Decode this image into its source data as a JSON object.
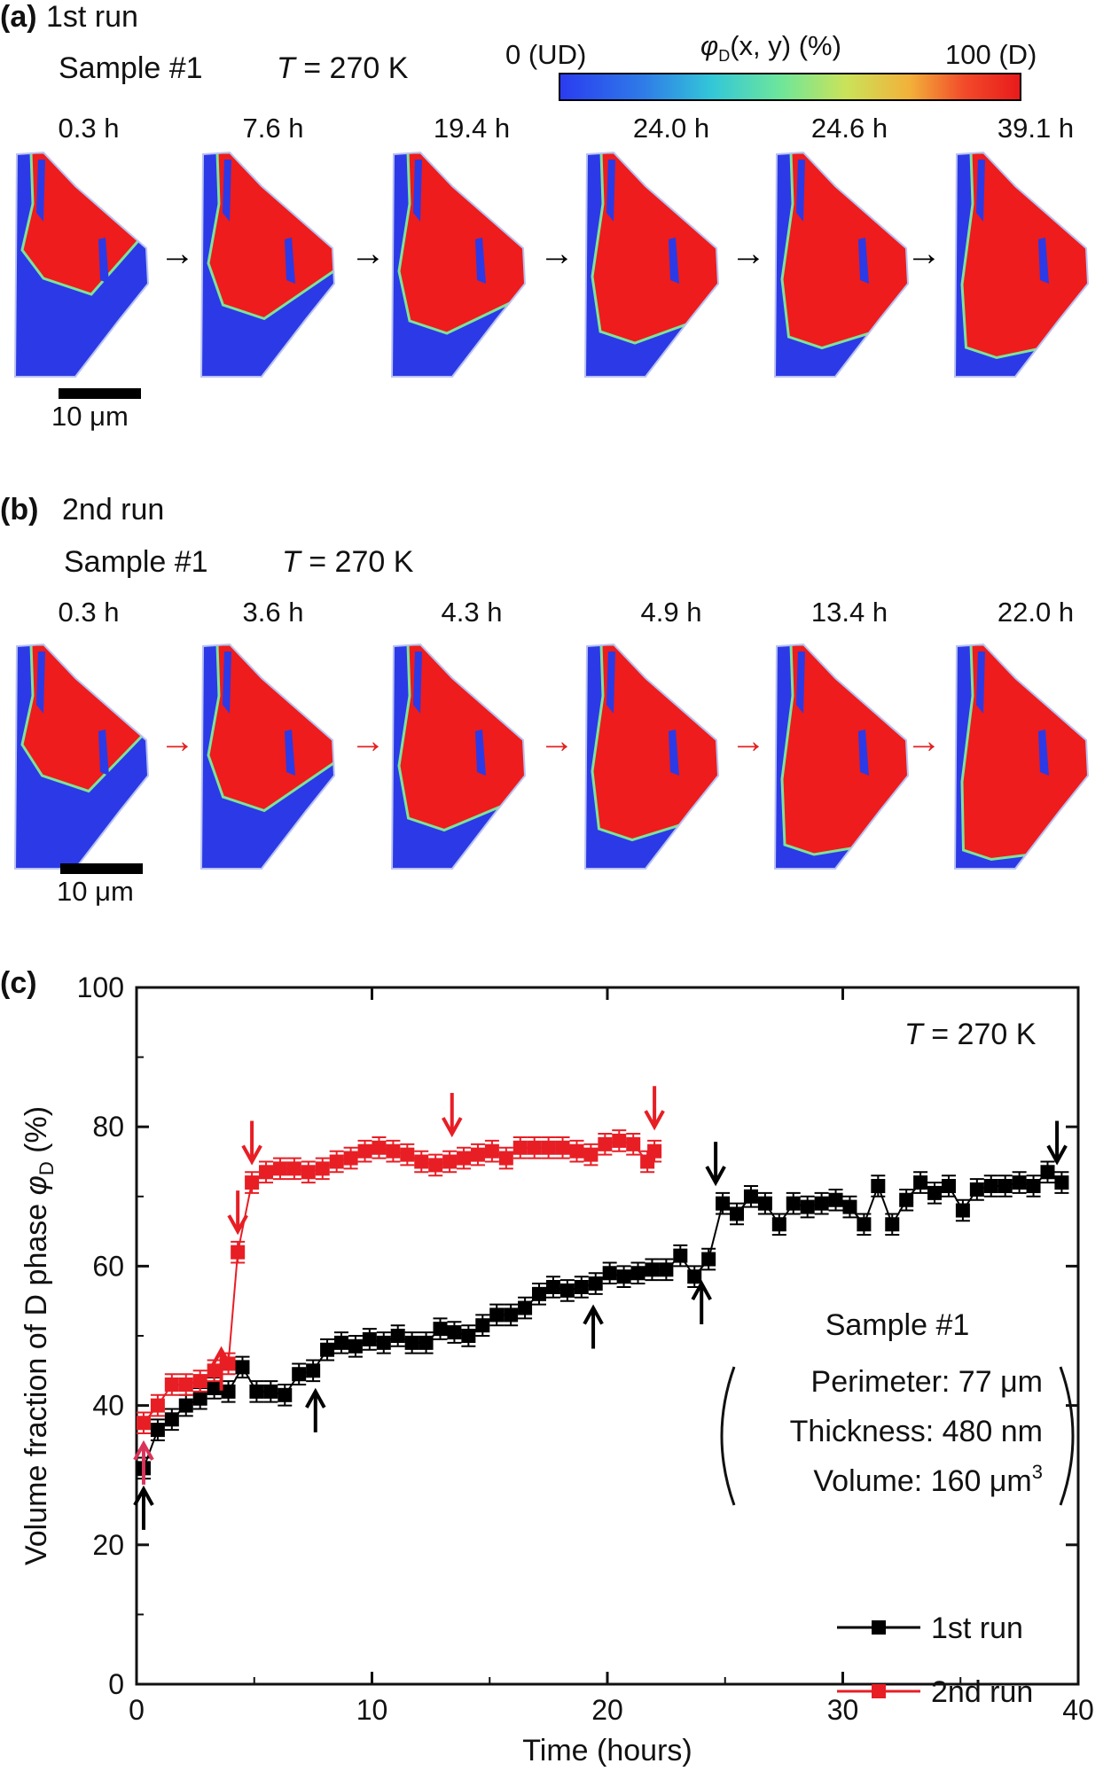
{
  "panel_a": {
    "label": "(a)",
    "title": "1st run",
    "sample": "Sample #1",
    "temp_T": "T",
    "temp_value": " = 270 K",
    "times": [
      "0.3 h",
      "7.6 h",
      "19.4 h",
      "24.0 h",
      "24.6 h",
      "39.1 h"
    ],
    "scale_label": "10 μm"
  },
  "colorbar": {
    "left_label": "0 (UD)",
    "right_label": "100 (D)",
    "title_phi": "φ",
    "title_sub": "D",
    "title_rest": "(x, y) (%)"
  },
  "panel_b": {
    "label": "(b)",
    "title": "2nd run",
    "sample": "Sample #1",
    "temp_T": "T",
    "temp_value": " = 270 K",
    "times": [
      "0.3 h",
      "3.6 h",
      "4.3 h",
      "4.9 h",
      "13.4 h",
      "22.0 h"
    ],
    "scale_label": "10 μm"
  },
  "panel_c": {
    "label": "(c)",
    "temp_T": "T",
    "temp_value": " = 270 K",
    "sample": "Sample #1",
    "perimeter": "Perimeter: 77 μm",
    "thickness": "Thickness: 480 nm",
    "volume": "Volume: 160 μm",
    "volume_sup": "3"
  },
  "colors": {
    "map_blue": "#2b3ae6",
    "map_red": "#ee1c1c",
    "map_green": "#7de39a",
    "run1": "#000000",
    "run2": "#e81e25",
    "arrow_pink": "#d9335a"
  },
  "chart_data": {
    "type": "scatter",
    "xlabel": "Time (hours)",
    "ylabel_main": "Volume fraction of D phase ",
    "ylabel_phi": "φ",
    "ylabel_sub": "D",
    "ylabel_unit": " (%)",
    "xlim": [
      0,
      40
    ],
    "ylim": [
      0,
      100
    ],
    "xticks": [
      0,
      10,
      20,
      30,
      40
    ],
    "yticks": [
      0,
      20,
      40,
      60,
      80,
      100
    ],
    "legend_placement": "bottom-right",
    "series": [
      {
        "name": "1st run",
        "color": "#000000",
        "x": [
          0.3,
          0.9,
          1.5,
          2.1,
          2.7,
          3.3,
          3.9,
          4.5,
          5.1,
          5.7,
          6.3,
          6.9,
          7.5,
          8.1,
          8.7,
          9.3,
          9.9,
          10.5,
          11.1,
          11.7,
          12.3,
          12.9,
          13.5,
          14.1,
          14.7,
          15.3,
          15.9,
          16.5,
          17.1,
          17.7,
          18.3,
          18.9,
          19.5,
          20.1,
          20.7,
          21.3,
          21.9,
          22.5,
          23.1,
          23.7,
          24.3,
          24.9,
          25.5,
          26.1,
          26.7,
          27.3,
          27.9,
          28.5,
          29.1,
          29.7,
          30.3,
          30.9,
          31.5,
          32.1,
          32.7,
          33.3,
          33.9,
          34.5,
          35.1,
          35.7,
          36.3,
          36.9,
          37.5,
          38.1,
          38.7,
          39.3
        ],
        "y": [
          31,
          36.5,
          38,
          40,
          41,
          42.5,
          42,
          45.5,
          42,
          42,
          41.5,
          44.5,
          45,
          48,
          49,
          48.5,
          49.5,
          49,
          50,
          49,
          49,
          51,
          50.5,
          50,
          51.5,
          53,
          53,
          54,
          56,
          57,
          56.5,
          57,
          57.5,
          59,
          58.5,
          59,
          59.5,
          59.5,
          61.5,
          58.5,
          61,
          69,
          67.5,
          70,
          69,
          66,
          69,
          68.5,
          69,
          69.5,
          68.5,
          66,
          71.5,
          66,
          69.5,
          72,
          70.5,
          71.5,
          68,
          71,
          71.5,
          71.5,
          72,
          71.5,
          73.5,
          72
        ]
      },
      {
        "name": "2nd run",
        "color": "#e81e25",
        "x": [
          0.3,
          0.9,
          1.5,
          2.1,
          2.7,
          3.3,
          3.9,
          4.3,
          4.9,
          5.5,
          6.1,
          6.7,
          7.3,
          7.9,
          8.5,
          9.1,
          9.7,
          10.3,
          10.9,
          11.5,
          12.1,
          12.7,
          13.3,
          13.9,
          14.5,
          15.1,
          15.7,
          16.3,
          16.9,
          17.5,
          18.1,
          18.7,
          19.3,
          19.9,
          20.5,
          21.1,
          21.7,
          22.0
        ],
        "y": [
          37.5,
          40,
          43,
          43,
          43.5,
          45,
          46,
          62,
          72,
          73.5,
          74,
          74,
          73.5,
          74,
          75,
          75.5,
          76.5,
          77,
          76.5,
          76,
          75,
          74.5,
          75,
          75.5,
          76,
          76.5,
          75.5,
          77,
          77,
          77,
          77,
          76.5,
          76,
          77.5,
          78,
          77.5,
          75,
          76.5
        ]
      }
    ]
  }
}
